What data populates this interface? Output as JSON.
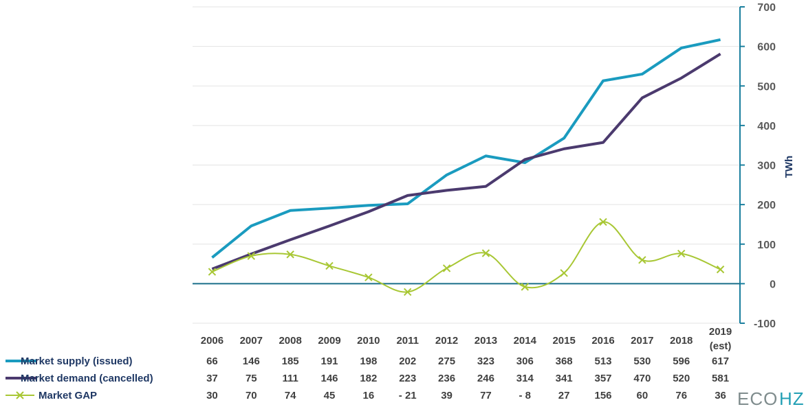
{
  "chart_data": {
    "type": "line",
    "categories": [
      "2006",
      "2007",
      "2008",
      "2009",
      "2010",
      "2011",
      "2012",
      "2013",
      "2014",
      "2015",
      "2016",
      "2017",
      "2018",
      "2019\n(est)"
    ],
    "series": [
      {
        "name": "Market supply (issued)",
        "color": "#1a9bbf",
        "values": [
          66,
          146,
          185,
          191,
          198,
          202,
          275,
          323,
          306,
          368,
          513,
          530,
          596,
          617
        ],
        "labels": [
          "66",
          "146",
          "185",
          "191",
          "198",
          "202",
          "275",
          "323",
          "306",
          "368",
          "513",
          "530",
          "596",
          "617"
        ]
      },
      {
        "name": "Market demand (cancelled)",
        "color": "#4b3a6e",
        "values": [
          37,
          75,
          111,
          146,
          182,
          223,
          236,
          246,
          314,
          341,
          357,
          470,
          520,
          581
        ],
        "labels": [
          "37",
          "75",
          "111",
          "146",
          "182",
          "223",
          "236",
          "246",
          "314",
          "341",
          "357",
          "470",
          "520",
          "581"
        ]
      },
      {
        "name": "Market GAP",
        "color": "#a8c734",
        "marker": "x",
        "values": [
          30,
          70,
          74,
          45,
          16,
          -21,
          39,
          77,
          -8,
          27,
          156,
          60,
          76,
          36
        ],
        "labels": [
          "30",
          "70",
          "74",
          "45",
          "16",
          "- 21",
          "39",
          "77",
          "- 8",
          "27",
          "156",
          "60",
          "76",
          "36"
        ]
      }
    ],
    "ylabel": "TWh",
    "ylim": [
      -100,
      700
    ],
    "yticks": [
      -100,
      0,
      100,
      200,
      300,
      400,
      500,
      600,
      700
    ],
    "grid": true,
    "axis_side": "right",
    "axis_color": "#1a7f9e",
    "data_table": true
  },
  "logo": {
    "part1": "ECO",
    "part2": "HZ"
  }
}
